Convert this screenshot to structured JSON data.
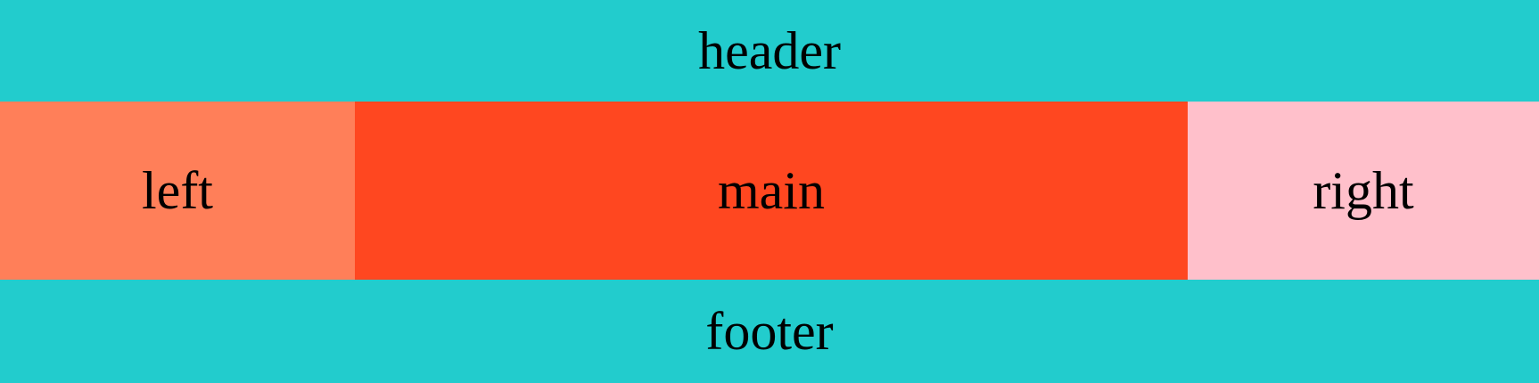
{
  "header": {
    "label": "header",
    "color": "#22cccd"
  },
  "columns": {
    "left": {
      "label": "left",
      "color": "#ff7f59"
    },
    "main": {
      "label": "main",
      "color": "#ff4720"
    },
    "right": {
      "label": "right",
      "color": "#ffc0cb"
    }
  },
  "footer": {
    "label": "footer",
    "color": "#22cccd"
  }
}
